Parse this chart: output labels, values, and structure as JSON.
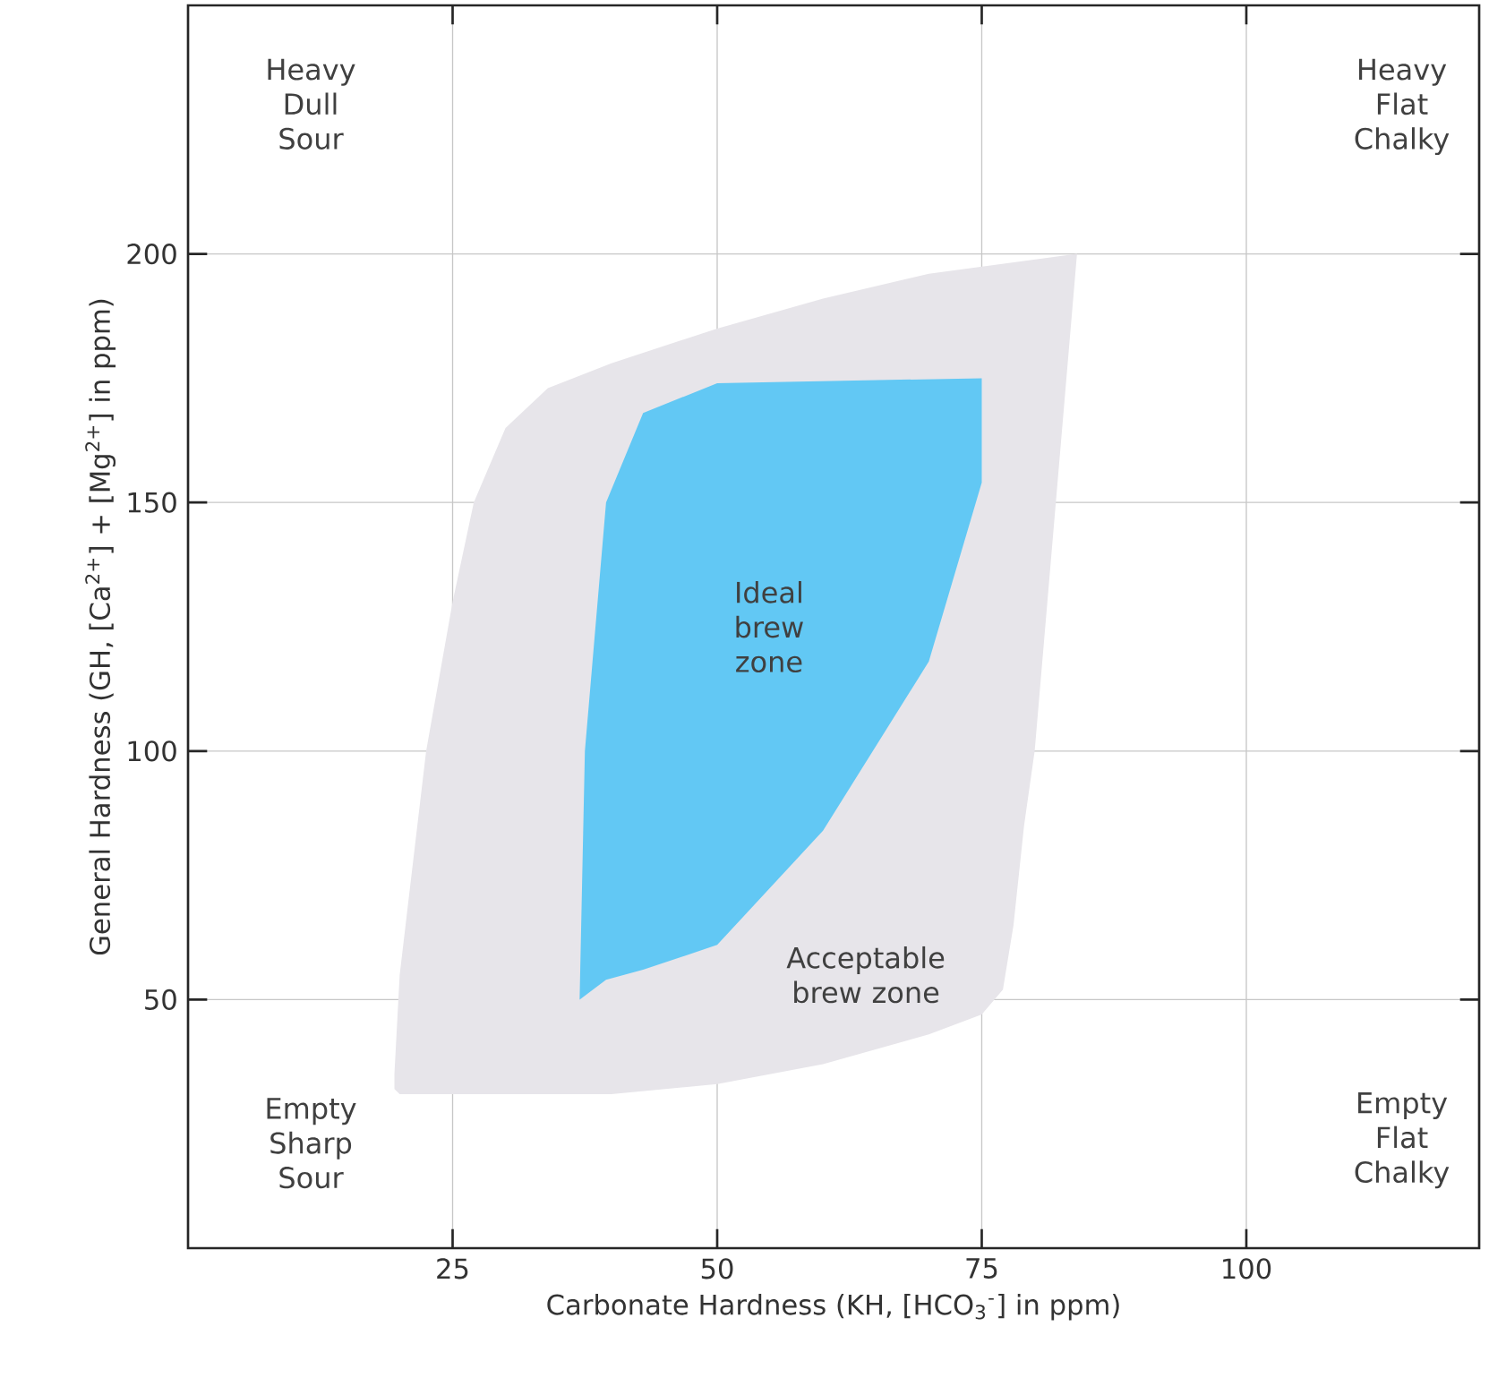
{
  "chart_data": {
    "type": "area",
    "xlabel": "Carbonate Hardness (KH, [HCO$_{3}$$^{-}$] in ppm)",
    "ylabel": "General Hardness (GH, [Ca$^{2+}$] + [Mg$^{2+}$] in ppm)",
    "xlim": [
      0,
      122
    ],
    "ylim": [
      0,
      250
    ],
    "xticks": [
      25,
      50,
      75,
      100
    ],
    "yticks": [
      50,
      100,
      150,
      200
    ],
    "grid": true,
    "series": [
      {
        "color": "#e7e5ea",
        "x": [
          19.5,
          20,
          22.5,
          25,
          27,
          30,
          34,
          40,
          50,
          60,
          70,
          84,
          82,
          80,
          79,
          78,
          77,
          75,
          70,
          60,
          50,
          40,
          20,
          19.5
        ],
        "values": [
          35,
          55,
          100,
          130,
          150,
          165,
          173,
          178,
          185,
          191,
          196,
          200,
          150,
          100,
          85,
          65,
          52,
          47,
          43,
          37,
          33,
          31,
          31,
          32
        ]
      },
      {
        "color": "#62c8f4",
        "x": [
          37,
          37.5,
          39.5,
          43,
          50,
          75,
          75,
          70,
          60,
          50,
          43,
          39.5
        ],
        "values": [
          50,
          100,
          150,
          168,
          174,
          175,
          154,
          118,
          84,
          61,
          56,
          54
        ]
      }
    ],
    "annotations": [
      "Heavy Dull Sour",
      "Heavy Flat Chalky",
      "Empty Sharp Sour",
      "Empty Flat Chalky",
      "Ideal brew zone",
      "Acceptable brew zone"
    ]
  }
}
